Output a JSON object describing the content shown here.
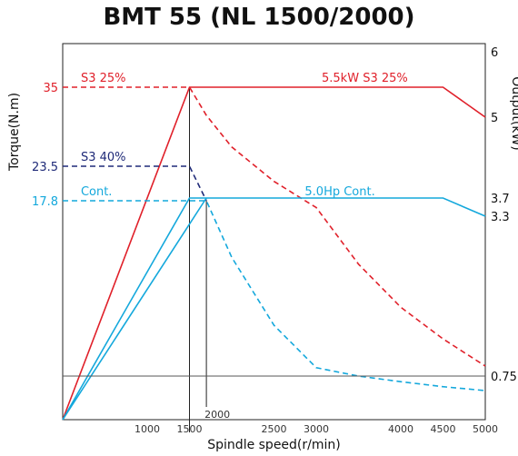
{
  "chart_data": {
    "type": "line",
    "title": "BMT 55 (NL 1500/2000)",
    "xlabel": "Spindle speed(r/min)",
    "ylabel_left": "Torque(N.m)",
    "ylabel_right": "Output(kW)",
    "xlim": [
      0,
      5000
    ],
    "x_ticks": [
      {
        "value": 1000,
        "label": "1000"
      },
      {
        "value": 1500,
        "label": "1500"
      },
      {
        "value": 2000,
        "label": "2000"
      },
      {
        "value": 2500,
        "label": "2500"
      },
      {
        "value": 3000,
        "label": "3000"
      },
      {
        "value": 4000,
        "label": "4000"
      },
      {
        "value": 4500,
        "label": "4500"
      },
      {
        "value": 5000,
        "label": "5000"
      }
    ],
    "left_ticks": [
      {
        "value": 35,
        "label": "35",
        "color": "#e0202a"
      },
      {
        "value": 23.5,
        "label": "23.5",
        "color": "#1f2a78"
      },
      {
        "value": 17.8,
        "label": "17.8",
        "color": "#14a8dc"
      }
    ],
    "right_ticks": [
      {
        "value": 6,
        "label": "6"
      },
      {
        "value": 5,
        "label": "5"
      },
      {
        "value": 3.7,
        "label": "3.7"
      },
      {
        "value": 3.3,
        "label": "3.3"
      },
      {
        "value": 0.75,
        "label": "0.75"
      }
    ],
    "series": [
      {
        "name": "S3 25%",
        "kind": "torque",
        "color": "#e0202a",
        "dashed": true,
        "points": [
          [
            0,
            35
          ],
          [
            1500,
            35
          ],
          [
            1700,
            30.9
          ],
          [
            2000,
            26.3
          ],
          [
            2500,
            21
          ],
          [
            3000,
            17.5
          ],
          [
            3500,
            15
          ],
          [
            4000,
            13.1
          ],
          [
            4500,
            11.7
          ],
          [
            5000,
            10.5
          ]
        ]
      },
      {
        "name": "5.5kW S3 25%",
        "kind": "output",
        "color": "#e0202a",
        "dashed": false,
        "points": [
          [
            0,
            0
          ],
          [
            1500,
            5.5
          ],
          [
            4500,
            5.5
          ],
          [
            5000,
            5
          ]
        ]
      },
      {
        "name": "S3 40%",
        "kind": "torque",
        "color": "#1f2a78",
        "dashed": true,
        "points": [
          [
            0,
            23.5
          ],
          [
            1500,
            23.5
          ],
          [
            1700,
            17.8
          ]
        ]
      },
      {
        "name": "Cont.",
        "kind": "torque",
        "color": "#14a8dc",
        "dashed": true,
        "points": [
          [
            0,
            17.8
          ],
          [
            1500,
            17.8
          ],
          [
            1700,
            17.8
          ],
          [
            2000,
            15.3
          ],
          [
            2500,
            12.3
          ],
          [
            3000,
            10.2
          ],
          [
            3500,
            8.7
          ],
          [
            4000,
            7.7
          ],
          [
            4500,
            6.8
          ],
          [
            5000,
            6.1
          ]
        ]
      },
      {
        "name": "5.0Hp Cont.",
        "kind": "output",
        "color": "#14a8dc",
        "dashed": false,
        "points": [
          [
            0,
            0
          ],
          [
            1500,
            3.7
          ],
          [
            4500,
            3.7
          ],
          [
            5000,
            3.3
          ]
        ]
      },
      {
        "name": "",
        "kind": "output",
        "color": "#14a8dc",
        "dashed": false,
        "points": [
          [
            0,
            0
          ],
          [
            1700,
            3.7
          ]
        ]
      },
      {
        "name": "0.75",
        "kind": "output",
        "color": "#555555",
        "dashed": false,
        "points": [
          [
            0,
            0.75
          ],
          [
            5000,
            0.75
          ]
        ]
      }
    ],
    "series_labels": [
      {
        "text": "S3 25%",
        "color": "#e0202a",
        "at": [
          150,
          35
        ]
      },
      {
        "text": "5.5kW S3 25%",
        "color": "#e0202a",
        "at": [
          3000,
          35
        ]
      },
      {
        "text": "S3 40%",
        "color": "#1f2a78",
        "at": [
          150,
          23.5
        ]
      },
      {
        "text": "Cont.",
        "color": "#14a8dc",
        "at": [
          150,
          17.8
        ]
      },
      {
        "text": "5.0Hp Cont.",
        "color": "#14a8dc",
        "at": [
          2800,
          17.8
        ]
      }
    ],
    "grid": false
  }
}
